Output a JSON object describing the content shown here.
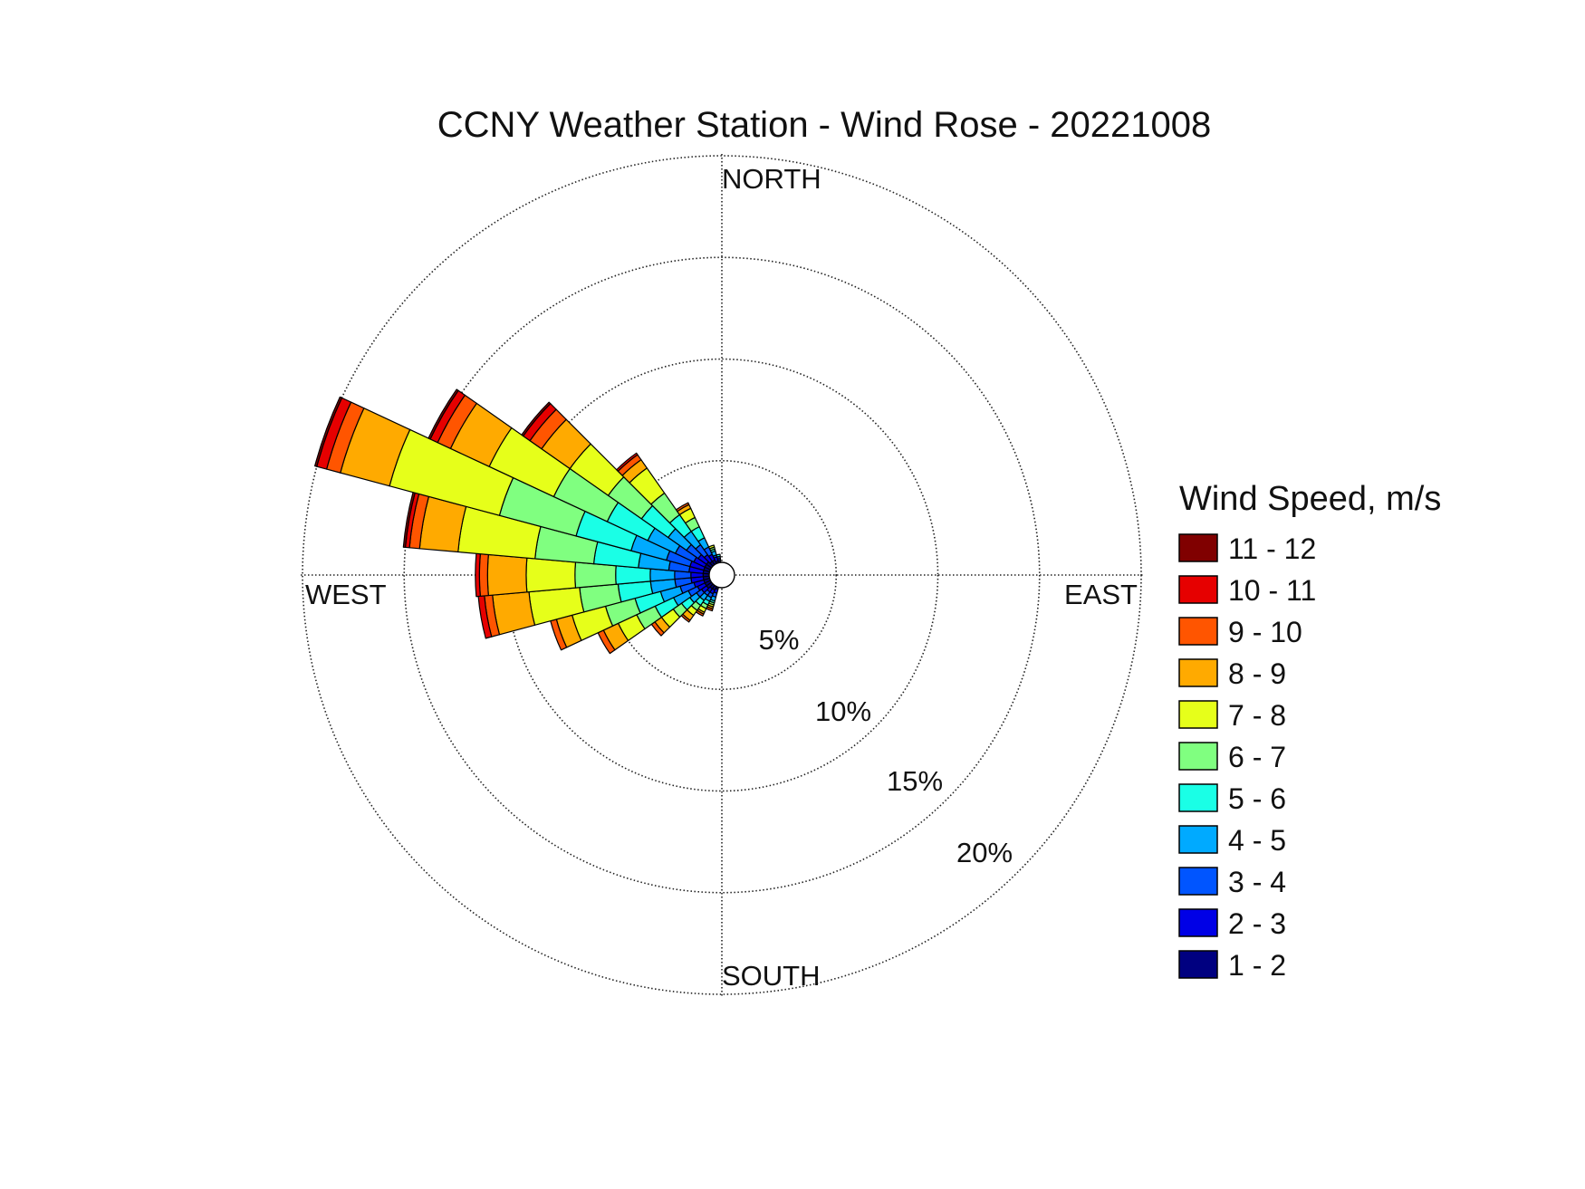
{
  "chart_data": {
    "type": "wind-rose",
    "title": "CCNY Weather Station - Wind Rose - 20221008",
    "direction_labels": {
      "north": "NORTH",
      "east": "EAST",
      "south": "SOUTH",
      "west": "WEST"
    },
    "radial_ticks": [
      {
        "value": 5,
        "label": "5%"
      },
      {
        "value": 10,
        "label": "10%"
      },
      {
        "value": 15,
        "label": "15%"
      },
      {
        "value": 20,
        "label": "20%"
      }
    ],
    "radial_max": 20,
    "grid": true,
    "legend": {
      "title": "Wind Speed, m/s",
      "placement": "right",
      "entries": [
        {
          "label": "11 - 12",
          "color": "#800000"
        },
        {
          "label": "10 - 11",
          "color": "#e60000"
        },
        {
          "label": "9 - 10",
          "color": "#ff5500"
        },
        {
          "label": "8 - 9",
          "color": "#ffaa00"
        },
        {
          "label": "7 - 8",
          "color": "#e6ff1a"
        },
        {
          "label": "6 - 7",
          "color": "#80ff80"
        },
        {
          "label": "5 - 6",
          "color": "#1affe6"
        },
        {
          "label": "4 - 5",
          "color": "#00aaff"
        },
        {
          "label": "3 - 4",
          "color": "#0055ff"
        },
        {
          "label": "2 - 3",
          "color": "#0000e6"
        },
        {
          "label": "1 - 2",
          "color": "#000080"
        }
      ]
    },
    "bins": [
      "1 - 2",
      "2 - 3",
      "3 - 4",
      "4 - 5",
      "5 - 6",
      "6 - 7",
      "7 - 8",
      "8 - 9",
      "9 - 10",
      "10 - 11",
      "11 - 12"
    ],
    "sector_width_deg": 10,
    "sectors": [
      {
        "direction_deg": 200,
        "cumulative": [
          0.1,
          0.3,
          0.5,
          0.7,
          0.8,
          0.9,
          1.0,
          1.1,
          1.2,
          1.2,
          1.2
        ]
      },
      {
        "direction_deg": 210,
        "cumulative": [
          0.2,
          0.4,
          0.6,
          0.8,
          1.0,
          1.2,
          1.4,
          1.5,
          1.6,
          1.6,
          1.6
        ]
      },
      {
        "direction_deg": 220,
        "cumulative": [
          0.2,
          0.4,
          0.6,
          0.9,
          1.2,
          1.5,
          1.8,
          2.1,
          2.2,
          2.2,
          2.2
        ]
      },
      {
        "direction_deg": 230,
        "cumulative": [
          0.3,
          0.6,
          0.9,
          1.3,
          1.8,
          2.3,
          3.0,
          3.4,
          3.6,
          3.6,
          3.6
        ]
      },
      {
        "direction_deg": 240,
        "cumulative": [
          0.3,
          0.7,
          1.2,
          2.0,
          3.0,
          4.0,
          5.0,
          5.8,
          6.1,
          6.1,
          6.1
        ]
      },
      {
        "direction_deg": 250,
        "cumulative": [
          0.3,
          0.8,
          1.5,
          2.5,
          3.8,
          5.3,
          7.0,
          7.8,
          8.1,
          8.1,
          8.1
        ]
      },
      {
        "direction_deg": 260,
        "cumulative": [
          0.3,
          0.9,
          1.7,
          2.9,
          4.5,
          6.4,
          8.9,
          10.7,
          11.1,
          11.4,
          11.4
        ]
      },
      {
        "direction_deg": 270,
        "cumulative": [
          0.3,
          0.9,
          1.7,
          2.9,
          4.6,
          6.6,
          9.0,
          10.9,
          11.3,
          11.5,
          11.5
        ]
      },
      {
        "direction_deg": 280,
        "cumulative": [
          0.3,
          1.0,
          2.0,
          3.5,
          5.7,
          8.6,
          12.4,
          14.3,
          14.8,
          15.0,
          15.1
        ]
      },
      {
        "direction_deg": 290,
        "cumulative": [
          0.3,
          1.0,
          2.2,
          4.0,
          6.8,
          10.7,
          16.3,
          18.8,
          19.5,
          20.0,
          20.1
        ]
      },
      {
        "direction_deg": 300,
        "cumulative": [
          0.3,
          0.9,
          1.9,
          3.4,
          5.6,
          8.5,
          12.0,
          14.1,
          14.8,
          15.2,
          15.3
        ]
      },
      {
        "direction_deg": 310,
        "cumulative": [
          0.3,
          0.8,
          1.5,
          2.6,
          4.2,
          6.2,
          8.5,
          10.2,
          10.9,
          11.3,
          11.4
        ]
      },
      {
        "direction_deg": 320,
        "cumulative": [
          0.2,
          0.6,
          1.2,
          2.0,
          3.0,
          4.3,
          5.8,
          6.3,
          6.6,
          6.7,
          6.7
        ]
      },
      {
        "direction_deg": 330,
        "cumulative": [
          0.2,
          0.5,
          0.9,
          1.4,
          2.0,
          2.5,
          3.0,
          3.2,
          3.3,
          3.3,
          3.3
        ]
      },
      {
        "direction_deg": 340,
        "cumulative": [
          0.1,
          0.3,
          0.4,
          0.6,
          0.7,
          0.8,
          0.9,
          0.9,
          0.9,
          0.9,
          0.9
        ]
      },
      {
        "direction_deg": 350,
        "cumulative": [
          0.1,
          0.2,
          0.3,
          0.3,
          0.4,
          0.4,
          0.4,
          0.4,
          0.4,
          0.4,
          0.4
        ]
      }
    ]
  }
}
